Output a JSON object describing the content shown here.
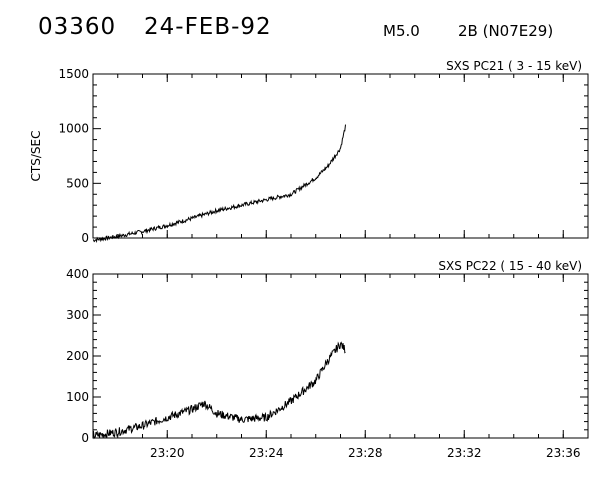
{
  "header": {
    "event_id": "03360",
    "date": "24-FEB-92",
    "flare_class": "M5.0",
    "flare_location": "2B (N07E29)"
  },
  "chart_data": [
    {
      "type": "line",
      "title": "SXS PC21  (  3 - 15 keV)",
      "ylabel": "CTS/SEC",
      "xlabel": "",
      "xlim": [
        "23:17",
        "23:37"
      ],
      "ylim": [
        0,
        1500
      ],
      "yticks": [
        0,
        500,
        1000,
        1500
      ],
      "xticks": [
        "23:20",
        "23:24",
        "23:28",
        "23:32",
        "23:36"
      ],
      "xtick_labels_shown": false,
      "noise": 0.012,
      "series": [
        {
          "x": [
            "23:17",
            "23:18",
            "23:19",
            "23:20",
            "23:21",
            "23:22",
            "23:23",
            "23:24",
            "23:25",
            "23:26",
            "23:26:30",
            "23:27",
            "23:27:12"
          ],
          "values": [
            -20,
            15,
            60,
            115,
            180,
            250,
            300,
            350,
            400,
            550,
            660,
            820,
            1020
          ]
        }
      ]
    },
    {
      "type": "line",
      "title": "SXS PC22  ( 15 - 40 keV)",
      "ylabel": "",
      "xlabel": "",
      "xlim": [
        "23:17",
        "23:37"
      ],
      "ylim": [
        0,
        400
      ],
      "yticks": [
        0,
        100,
        200,
        300,
        400
      ],
      "xticks": [
        "23:20",
        "23:24",
        "23:28",
        "23:32",
        "23:36"
      ],
      "xtick_labels_shown": true,
      "noise": 0.025,
      "series": [
        {
          "x": [
            "23:17",
            "23:18",
            "23:19",
            "23:20",
            "23:21",
            "23:21:30",
            "23:22",
            "23:23",
            "23:24",
            "23:25",
            "23:26",
            "23:26:30",
            "23:27",
            "23:27:12"
          ],
          "values": [
            5,
            15,
            30,
            50,
            70,
            85,
            60,
            45,
            50,
            90,
            140,
            190,
            230,
            215
          ]
        }
      ]
    }
  ]
}
